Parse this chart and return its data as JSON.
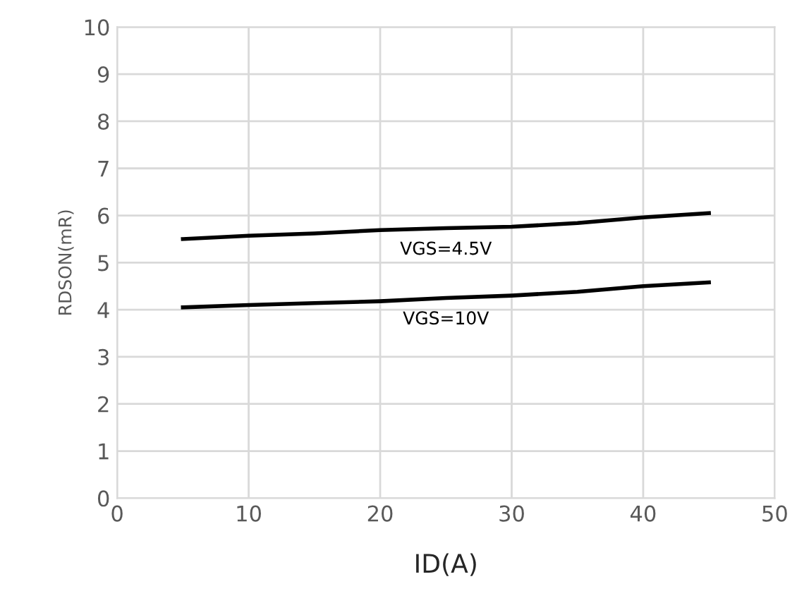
{
  "chart_data": {
    "type": "line",
    "xlabel": "ID(A)",
    "ylabel": "RDSON(mR)",
    "xlim": [
      0,
      50
    ],
    "xticks": [
      0,
      10,
      20,
      30,
      40,
      50
    ],
    "ylim": [
      0,
      10
    ],
    "yticks": [
      0,
      1,
      2,
      3,
      4,
      5,
      6,
      7,
      8,
      9,
      10
    ],
    "grid": true,
    "marker": "none",
    "line_style": "solid",
    "series": [
      {
        "name": "VGS=4.5V",
        "color": "#000000",
        "x": [
          5,
          10,
          15,
          20,
          25,
          30,
          35,
          40,
          45
        ],
        "values": [
          5.5,
          5.57,
          5.62,
          5.69,
          5.73,
          5.76,
          5.84,
          5.96,
          6.05
        ]
      },
      {
        "name": "VGS=10V",
        "color": "#000000",
        "x": [
          5,
          10,
          15,
          20,
          25,
          30,
          35,
          40,
          45
        ],
        "values": [
          4.05,
          4.1,
          4.14,
          4.18,
          4.25,
          4.3,
          4.38,
          4.5,
          4.58
        ]
      }
    ]
  }
}
